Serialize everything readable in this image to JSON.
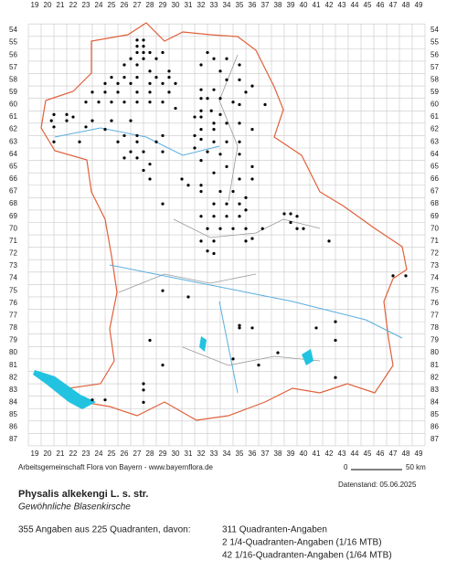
{
  "grid": {
    "columns": [
      19,
      20,
      21,
      22,
      23,
      24,
      25,
      26,
      27,
      28,
      29,
      30,
      31,
      32,
      33,
      34,
      35,
      36,
      37,
      38,
      39,
      40,
      41,
      42,
      43,
      44,
      45,
      46,
      47,
      48,
      49
    ],
    "rows": [
      54,
      55,
      56,
      57,
      58,
      59,
      60,
      61,
      62,
      63,
      64,
      65,
      66,
      67,
      68,
      69,
      70,
      71,
      72,
      73,
      74,
      75,
      76,
      77,
      78,
      79,
      80,
      81,
      82,
      83,
      84,
      85,
      86,
      87
    ]
  },
  "records": [
    [
      27,
      54.8
    ],
    [
      27.5,
      54.8
    ],
    [
      27,
      55.3
    ],
    [
      27.5,
      55.3
    ],
    [
      27,
      55.8
    ],
    [
      27.5,
      55.8
    ],
    [
      28,
      55.8
    ],
    [
      29,
      55.8
    ],
    [
      26.5,
      56.3
    ],
    [
      27.5,
      56.3
    ],
    [
      28.5,
      56.3
    ],
    [
      26,
      56.8
    ],
    [
      27,
      56.8
    ],
    [
      28,
      57.3
    ],
    [
      29.5,
      57.3
    ],
    [
      25,
      57.8
    ],
    [
      26,
      57.8
    ],
    [
      27,
      57.8
    ],
    [
      28.5,
      57.8
    ],
    [
      29.5,
      57.8
    ],
    [
      24.5,
      58.3
    ],
    [
      25.5,
      58.3
    ],
    [
      26.5,
      58.3
    ],
    [
      28,
      58.3
    ],
    [
      29,
      58.3
    ],
    [
      30,
      58.3
    ],
    [
      23.5,
      59
    ],
    [
      24.5,
      59
    ],
    [
      25.5,
      59
    ],
    [
      27,
      59
    ],
    [
      28,
      59
    ],
    [
      29.5,
      59
    ],
    [
      23,
      59.8
    ],
    [
      24,
      59.8
    ],
    [
      25,
      59.8
    ],
    [
      26,
      59.8
    ],
    [
      27,
      59.8
    ],
    [
      28,
      59.8
    ],
    [
      29,
      59.8
    ],
    [
      30,
      60.3
    ],
    [
      20.5,
      60.8
    ],
    [
      21.5,
      60.8
    ],
    [
      22,
      61
    ],
    [
      20.3,
      61.3
    ],
    [
      21.5,
      61.3
    ],
    [
      23.5,
      61.3
    ],
    [
      25,
      61.3
    ],
    [
      26.5,
      61.3
    ],
    [
      20.5,
      61.8
    ],
    [
      23,
      61.8
    ],
    [
      24.5,
      62
    ],
    [
      26,
      62.5
    ],
    [
      27,
      62.5
    ],
    [
      29,
      62.5
    ],
    [
      20.5,
      63
    ],
    [
      22.5,
      63
    ],
    [
      25.5,
      63
    ],
    [
      27,
      63
    ],
    [
      28.5,
      63
    ],
    [
      26.5,
      63.8
    ],
    [
      27.5,
      63.8
    ],
    [
      29,
      63.8
    ],
    [
      26,
      64.3
    ],
    [
      27,
      64.3
    ],
    [
      28,
      64.8
    ],
    [
      27.5,
      65.3
    ],
    [
      28,
      66
    ],
    [
      30.5,
      66
    ],
    [
      31,
      66.5
    ],
    [
      32,
      67
    ],
    [
      29,
      68
    ],
    [
      32.5,
      55.8
    ],
    [
      33,
      56.3
    ],
    [
      34,
      56.3
    ],
    [
      32,
      56.8
    ],
    [
      33.5,
      57.3
    ],
    [
      35,
      56.8
    ],
    [
      34,
      58
    ],
    [
      35,
      58
    ],
    [
      36,
      58.5
    ],
    [
      32,
      58.8
    ],
    [
      33,
      58.8
    ],
    [
      35.5,
      59
    ],
    [
      32,
      59.5
    ],
    [
      32.5,
      59.5
    ],
    [
      33.5,
      59.5
    ],
    [
      34.5,
      59.8
    ],
    [
      35,
      60
    ],
    [
      37,
      60
    ],
    [
      32,
      60.5
    ],
    [
      32.8,
      60.5
    ],
    [
      33.5,
      60.8
    ],
    [
      31.5,
      61
    ],
    [
      32,
      61
    ],
    [
      33,
      61.5
    ],
    [
      34,
      61.5
    ],
    [
      35,
      61.5
    ],
    [
      32,
      62
    ],
    [
      33,
      62
    ],
    [
      36,
      62
    ],
    [
      31.5,
      62.5
    ],
    [
      32,
      62.8
    ],
    [
      33,
      63
    ],
    [
      34,
      63
    ],
    [
      35,
      63
    ],
    [
      31.5,
      63.5
    ],
    [
      32.5,
      63.8
    ],
    [
      33.5,
      64
    ],
    [
      35,
      64
    ],
    [
      32,
      64.5
    ],
    [
      34,
      65
    ],
    [
      36,
      65
    ],
    [
      33,
      65.5
    ],
    [
      35,
      66
    ],
    [
      36,
      66
    ],
    [
      32,
      66.5
    ],
    [
      33.5,
      67
    ],
    [
      34.5,
      67
    ],
    [
      35.5,
      67.5
    ],
    [
      33,
      68
    ],
    [
      34,
      68
    ],
    [
      35,
      68
    ],
    [
      35.5,
      68.5
    ],
    [
      32,
      69
    ],
    [
      33,
      69
    ],
    [
      34,
      69
    ],
    [
      35,
      69
    ],
    [
      38.5,
      68.8
    ],
    [
      39,
      68.8
    ],
    [
      39.5,
      69
    ],
    [
      32.5,
      70
    ],
    [
      33.5,
      70
    ],
    [
      34.5,
      70
    ],
    [
      35.5,
      70
    ],
    [
      36.8,
      70
    ],
    [
      39,
      69.5
    ],
    [
      39.5,
      70
    ],
    [
      40,
      70
    ],
    [
      32,
      71
    ],
    [
      33,
      71
    ],
    [
      35.5,
      71
    ],
    [
      36,
      70.8
    ],
    [
      42,
      71
    ],
    [
      33,
      72
    ],
    [
      32.5,
      71.8
    ],
    [
      47,
      73.8
    ],
    [
      48,
      73.8
    ],
    [
      29,
      75
    ],
    [
      31,
      75.5
    ],
    [
      35,
      77.8
    ],
    [
      35,
      78
    ],
    [
      36,
      78
    ],
    [
      41,
      78
    ],
    [
      42.5,
      77.5
    ],
    [
      28,
      79
    ],
    [
      42.5,
      79
    ],
    [
      38,
      80
    ],
    [
      29,
      81
    ],
    [
      34.5,
      80.5
    ],
    [
      36.5,
      81
    ],
    [
      27.5,
      82.5
    ],
    [
      42.5,
      82
    ],
    [
      27.5,
      83
    ],
    [
      23.5,
      83.8
    ],
    [
      24.5,
      83.8
    ],
    [
      27.5,
      84
    ]
  ],
  "footer": {
    "credit": "Arbeitsgemeinschaft Flora von Bayern - www.bayernflora.de",
    "scale_start": "0",
    "scale_end": "50 km",
    "date": "Datenstand: 05.06.2025",
    "title": "Physalis alkekengi L. s. str.",
    "subtitle": "Gewöhnliche Blasenkirsche",
    "summary": "355 Angaben aus 225 Quadranten, davon:",
    "breakdown": [
      "311 Quadranten-Angaben",
      "2 1/4-Quadranten-Angaben (1/16 MTB)",
      "42 1/16-Quadranten-Angaben (1/64 MTB)"
    ]
  }
}
